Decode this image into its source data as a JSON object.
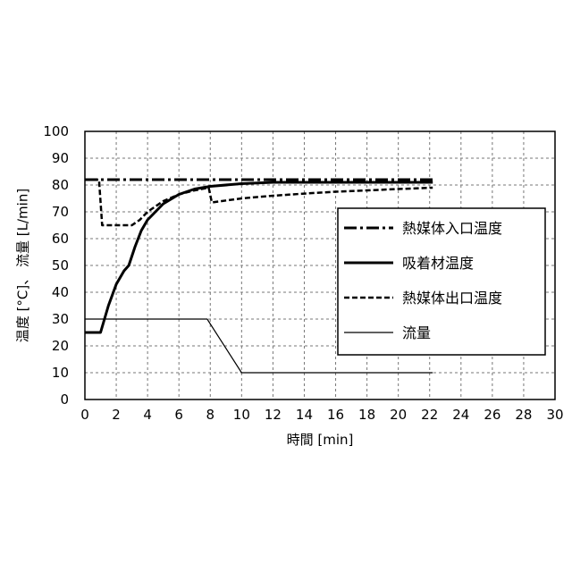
{
  "chart_data": {
    "type": "line",
    "xlabel": "時間 [min]",
    "ylabel": "温度 [°C]、 流量 [L/min]",
    "xlim": [
      0,
      30
    ],
    "ylim": [
      0,
      100
    ],
    "x_ticks": [
      0,
      2,
      4,
      6,
      8,
      10,
      12,
      14,
      16,
      18,
      20,
      22,
      24,
      26,
      28,
      30
    ],
    "y_ticks": [
      0,
      10,
      20,
      30,
      40,
      50,
      60,
      70,
      80,
      90,
      100
    ],
    "grid": true,
    "legend_position": "right",
    "series": [
      {
        "name": "熱媒体入口温度",
        "style": "dash-dot",
        "stroke_width": 3,
        "color": "#000000",
        "points": [
          [
            0,
            82
          ],
          [
            22.2,
            82
          ]
        ]
      },
      {
        "name": "吸着材温度",
        "style": "solid",
        "stroke_width": 3,
        "color": "#000000",
        "points": [
          [
            0,
            25
          ],
          [
            1.0,
            25
          ],
          [
            1.5,
            35
          ],
          [
            2.0,
            43
          ],
          [
            2.5,
            48
          ],
          [
            2.8,
            50
          ],
          [
            3.2,
            57
          ],
          [
            3.6,
            63
          ],
          [
            4.0,
            67
          ],
          [
            5.0,
            73
          ],
          [
            6.0,
            76.5
          ],
          [
            7.0,
            78.5
          ],
          [
            8.0,
            79.5
          ],
          [
            10.0,
            80.5
          ],
          [
            12.0,
            81
          ],
          [
            16.0,
            81
          ],
          [
            22.2,
            81
          ]
        ]
      },
      {
        "name": "熱媒体出口温度",
        "style": "dashed",
        "stroke_width": 2.5,
        "color": "#000000",
        "points": [
          [
            0,
            82
          ],
          [
            0.9,
            82
          ],
          [
            1.1,
            65
          ],
          [
            3.0,
            65
          ],
          [
            3.5,
            67
          ],
          [
            4.0,
            70
          ],
          [
            5.0,
            74
          ],
          [
            6.0,
            76.5
          ],
          [
            7.0,
            78
          ],
          [
            7.9,
            79
          ],
          [
            8.1,
            73.5
          ],
          [
            10.0,
            75
          ],
          [
            12.0,
            76
          ],
          [
            14.0,
            76.8
          ],
          [
            16.0,
            77.5
          ],
          [
            18.0,
            78
          ],
          [
            20.0,
            78.5
          ],
          [
            22.2,
            79
          ]
        ]
      },
      {
        "name": "流量",
        "style": "solid",
        "stroke_width": 1.2,
        "color": "#000000",
        "points": [
          [
            0,
            30
          ],
          [
            7.8,
            30
          ],
          [
            10.0,
            10
          ],
          [
            22.2,
            10
          ]
        ]
      }
    ]
  }
}
